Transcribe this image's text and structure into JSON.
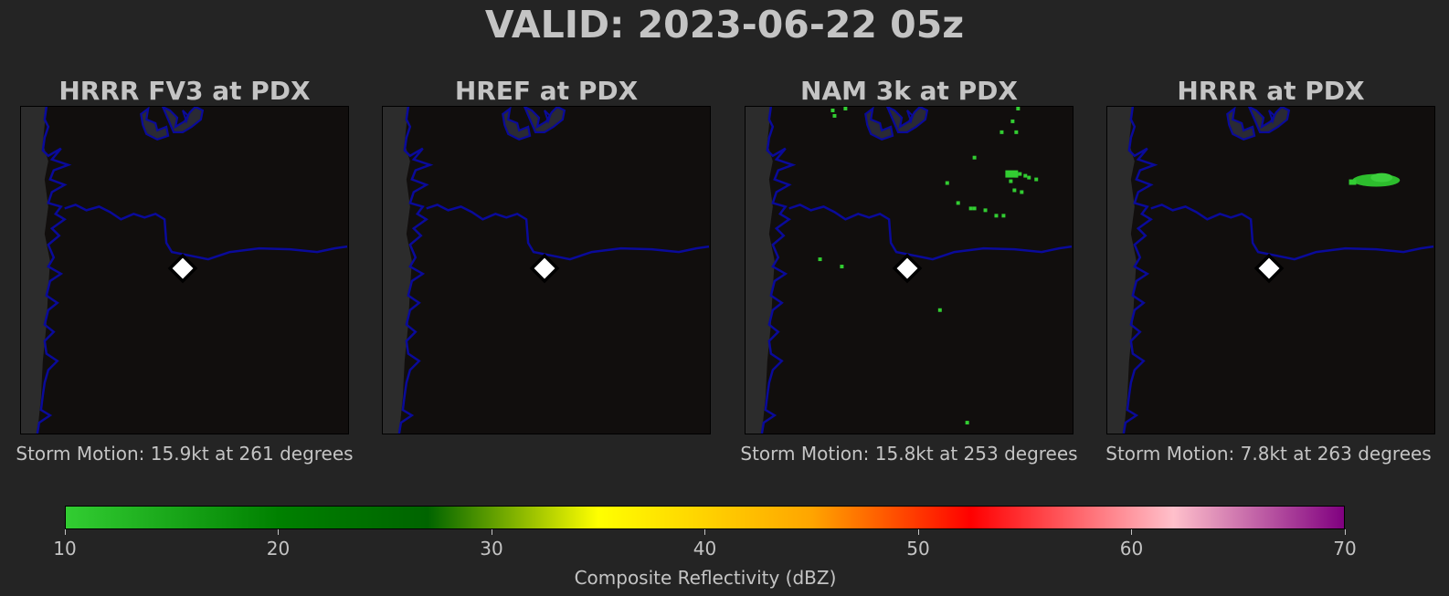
{
  "title": "VALID: 2023-06-22 05z",
  "panels": [
    {
      "title": "HRRR FV3 at PDX",
      "storm_motion": "Storm Motion: 15.9kt at 261 degrees",
      "echoes": "none"
    },
    {
      "title": "HREF at PDX",
      "storm_motion": "",
      "echoes": "none"
    },
    {
      "title": "NAM 3k at PDX",
      "storm_motion": "Storm Motion: 15.8kt at 253 degrees",
      "echoes": "scattered"
    },
    {
      "title": "HRRR at PDX",
      "storm_motion": "Storm Motion: 7.8kt at 263 degrees",
      "echoes": "cluster"
    }
  ],
  "colorbar": {
    "label": "Composite Reflectivity (dBZ)",
    "ticks": [
      "10",
      "20",
      "30",
      "40",
      "50",
      "60",
      "70"
    ],
    "range": [
      10,
      70
    ],
    "stops": [
      {
        "value": 10,
        "color": "#32cd32"
      },
      {
        "value": 20,
        "color": "#008000"
      },
      {
        "value": 27,
        "color": "#006400"
      },
      {
        "value": 35,
        "color": "#ffff00"
      },
      {
        "value": 45,
        "color": "#ffa500"
      },
      {
        "value": 52.5,
        "color": "#ff0000"
      },
      {
        "value": 62,
        "color": "#ffc0cb"
      },
      {
        "value": 70,
        "color": "#800080"
      }
    ]
  },
  "colors": {
    "background": "#242424",
    "map_background": "#110e0d",
    "ocean": "#2c2c2c",
    "coastline": "#0a0a9a",
    "echo": "#32cd32",
    "station_marker": "#ffffff"
  },
  "station": "PDX"
}
